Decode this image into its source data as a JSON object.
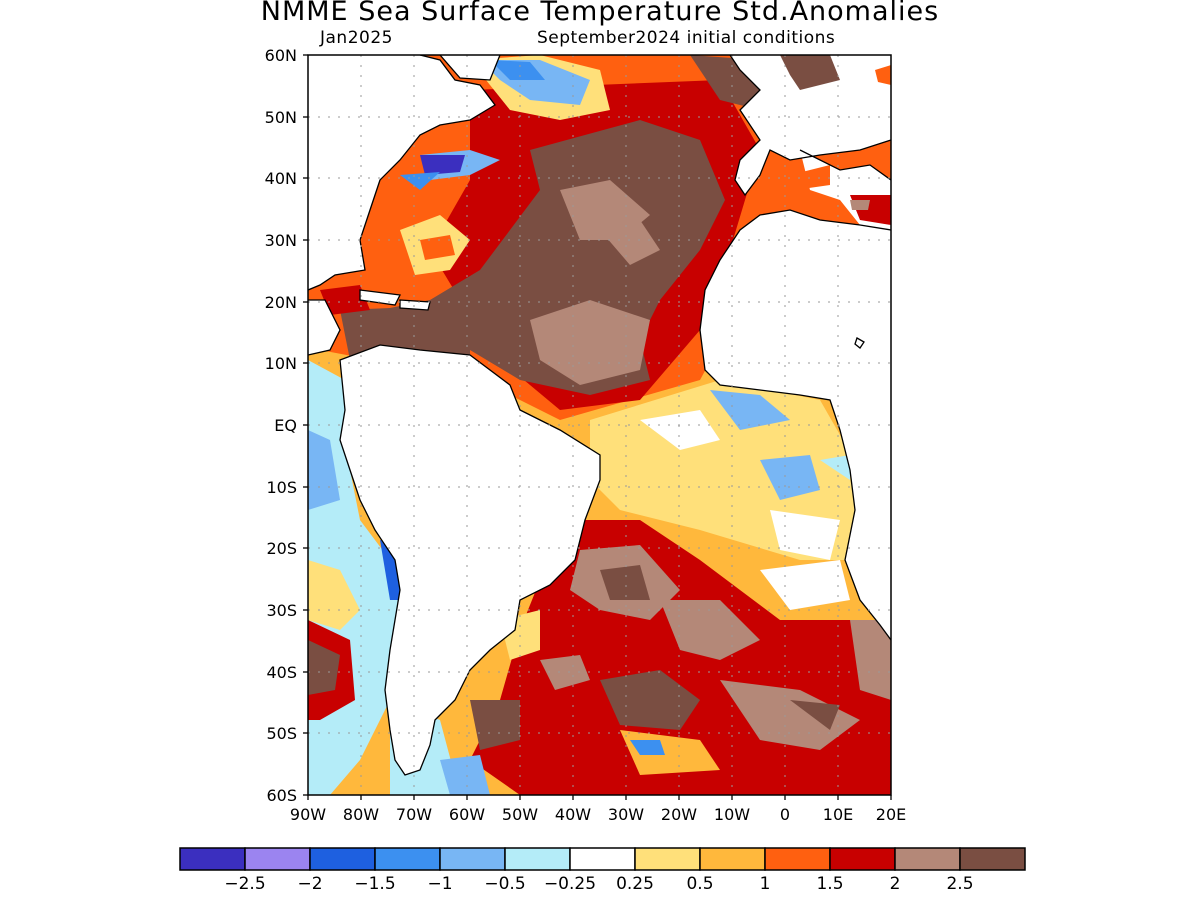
{
  "title": "NMME Sea Surface Temperature Std.Anomalies",
  "subtitle_left": "Jan2025",
  "subtitle_right": "September2024 initial conditions",
  "lat_labels": [
    "60N",
    "50N",
    "40N",
    "30N",
    "20N",
    "10N",
    "EQ",
    "10S",
    "20S",
    "30S",
    "40S",
    "50S",
    "60S"
  ],
  "lon_labels": [
    "90W",
    "80W",
    "70W",
    "60W",
    "50W",
    "40W",
    "30W",
    "20W",
    "10W",
    "0",
    "10E",
    "20E"
  ],
  "colorbar": {
    "colors": [
      "#3b2fbf",
      "#9b84f0",
      "#1e60e0",
      "#3c90f0",
      "#78b6f4",
      "#b4ecf8",
      "#ffffff",
      "#ffe07a",
      "#ffb83c",
      "#ff6010",
      "#c80000",
      "#b48878",
      "#7a4e42"
    ],
    "labels": [
      "−2.5",
      "−2",
      "−1.5",
      "−1",
      "−0.5",
      "−0.25",
      "0.25",
      "0.5",
      "1",
      "1.5",
      "2",
      "2.5"
    ]
  }
}
